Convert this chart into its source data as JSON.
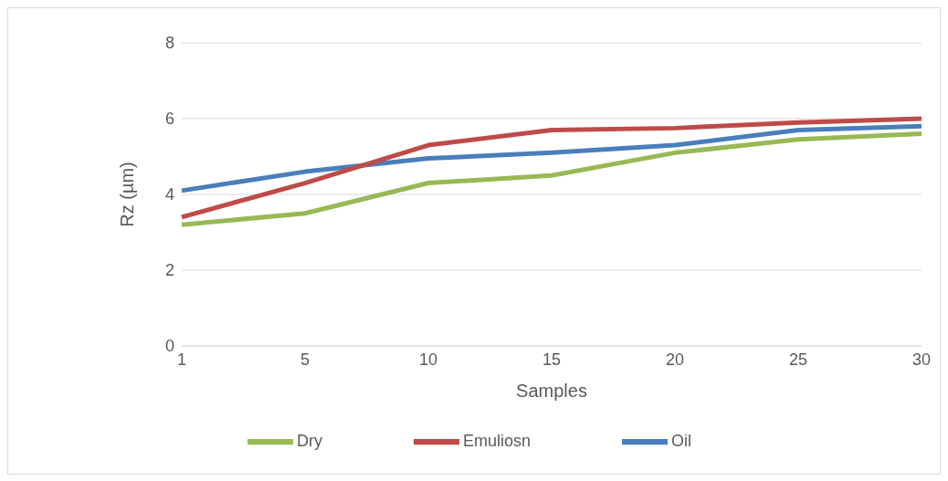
{
  "chart_data": {
    "type": "line",
    "xlabel": "Samples",
    "ylabel": "Rz (µm)",
    "categories": [
      "1",
      "5",
      "10",
      "15",
      "20",
      "25",
      "30"
    ],
    "series": [
      {
        "name": "Oil",
        "color": "#4a7ebb",
        "values": [
          4.1,
          4.6,
          4.95,
          5.1,
          5.3,
          5.7,
          5.8
        ]
      },
      {
        "name": "Emuliosn",
        "color": "#be4b48",
        "values": [
          3.4,
          4.3,
          5.3,
          5.7,
          5.75,
          5.9,
          6.0
        ]
      },
      {
        "name": "Dry",
        "color": "#98b954",
        "values": [
          3.2,
          3.5,
          4.3,
          4.5,
          5.1,
          5.45,
          5.6
        ]
      }
    ],
    "ylim": [
      0,
      8
    ],
    "yticks": [
      0,
      2,
      4,
      6,
      8
    ],
    "grid": "y",
    "legend": "bottom",
    "marker": "none",
    "line_style": "solid"
  }
}
